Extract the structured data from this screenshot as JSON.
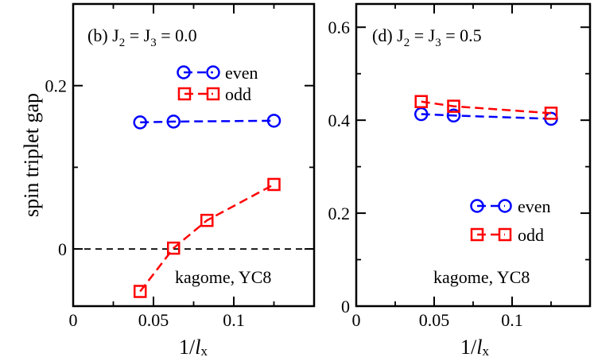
{
  "chart_data": [
    {
      "type": "line",
      "panel": "left",
      "title": "(b) J2 = J3 = 0.0",
      "title_parts": {
        "prefix": "(b) J",
        "s1": "2",
        "mid": " = J",
        "s2": "3",
        "suffix": " = 0.0"
      },
      "xlabel": "1/lx",
      "xlabel_parts": {
        "main": "1/",
        "ital": "l",
        "sub": "x"
      },
      "ylabel": "spin triplet gap",
      "xlim": [
        0,
        0.15
      ],
      "ylim": [
        -0.07,
        0.3
      ],
      "xticks": [
        0,
        0.05,
        0.1
      ],
      "xtick_labels": [
        "0",
        "0.05",
        "0.1"
      ],
      "yticks": [
        0,
        0.2
      ],
      "ytick_labels": [
        "0",
        "0.2"
      ],
      "yminor": [
        0.1
      ],
      "annotation": "kagome, YC8",
      "reference_line": {
        "y": 0,
        "style": "dashed",
        "color": "#000000"
      },
      "series": [
        {
          "name": "even",
          "marker": "circle",
          "color": "#0000ff",
          "x": [
            0.0417,
            0.0625,
            0.125
          ],
          "y": [
            0.155,
            0.156,
            0.157
          ]
        },
        {
          "name": "odd",
          "marker": "square",
          "color": "#ff0000",
          "x": [
            0.0417,
            0.0625,
            0.0833,
            0.125
          ],
          "y": [
            -0.052,
            0.001,
            0.035,
            0.079
          ]
        }
      ]
    },
    {
      "type": "line",
      "panel": "right",
      "title": "(d) J2 = J3 = 0.5",
      "title_parts": {
        "prefix": "(d) J",
        "s1": "2",
        "mid": " = J",
        "s2": "3",
        "suffix": " = 0.5"
      },
      "xlabel": "1/lx",
      "xlabel_parts": {
        "main": "1/",
        "ital": "l",
        "sub": "x"
      },
      "ylabel": "",
      "xlim": [
        0,
        0.15
      ],
      "ylim": [
        0,
        0.65
      ],
      "xticks": [
        0,
        0.05,
        0.1
      ],
      "xtick_labels": [
        "0",
        "0.05",
        "0.1"
      ],
      "yticks": [
        0,
        0.2,
        0.4,
        0.6
      ],
      "ytick_labels": [
        "0",
        "0.2",
        "0.4",
        "0.6"
      ],
      "yminor": [
        0.1,
        0.3,
        0.5
      ],
      "annotation": "kagome, YC8",
      "series": [
        {
          "name": "even",
          "marker": "circle",
          "color": "#0000ff",
          "x": [
            0.0417,
            0.0625,
            0.125
          ],
          "y": [
            0.413,
            0.41,
            0.403
          ]
        },
        {
          "name": "odd",
          "marker": "square",
          "color": "#ff0000",
          "x": [
            0.0417,
            0.0625,
            0.125
          ],
          "y": [
            0.44,
            0.43,
            0.415
          ]
        }
      ]
    }
  ]
}
